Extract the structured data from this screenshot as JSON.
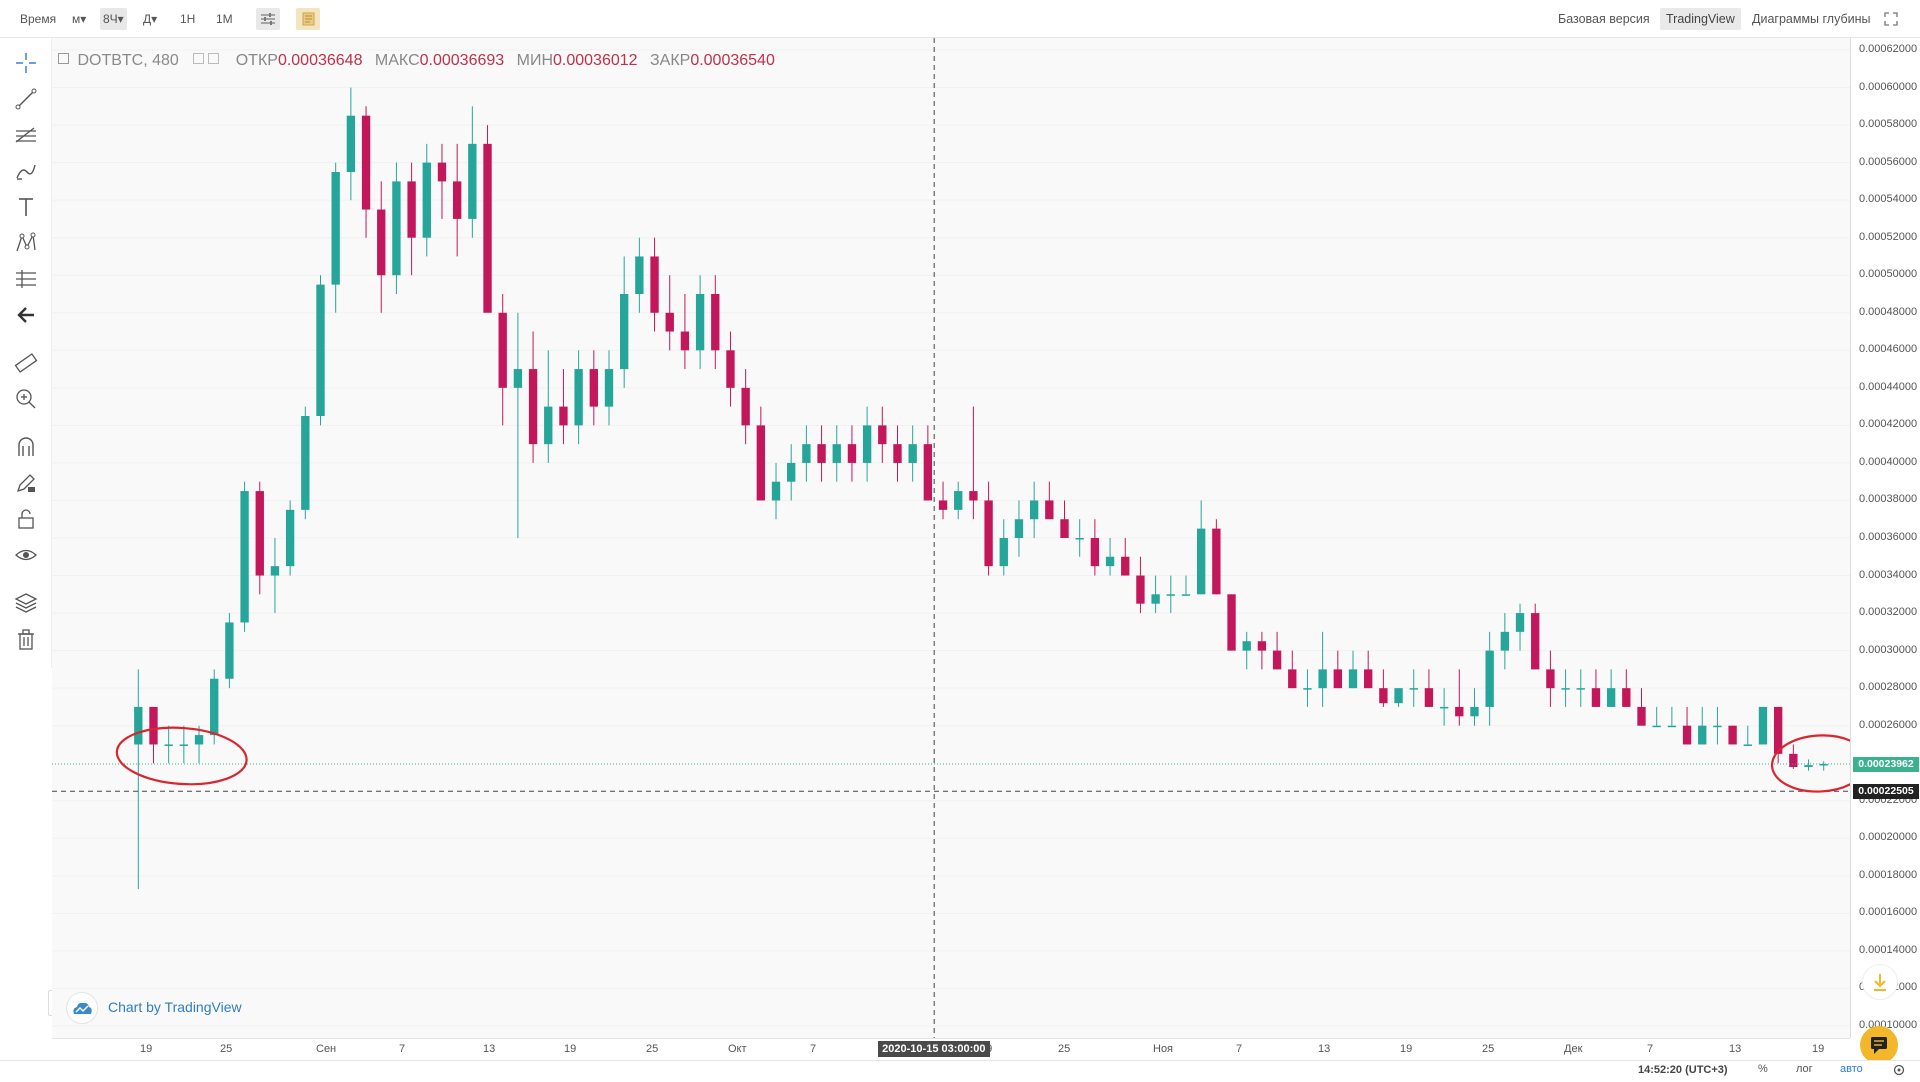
{
  "toolbar": {
    "time_label": "Время",
    "minutes_label": "м▾",
    "interval_selected": "8Ч▾",
    "days_label": "Д▾",
    "h1_label": "1Н",
    "m1_label": "1М",
    "indicators_icon": "sliders-icon",
    "template_icon": "note-icon",
    "views": [
      "Базовая версия",
      "TradingView",
      "Диаграммы глубины"
    ],
    "active_view": "TradingView",
    "fullscreen_icon": "fullscreen-icon"
  },
  "left_tools": [
    "crosshair-icon",
    "trendline-icon",
    "fib-icon",
    "brush-icon",
    "text-icon",
    "pattern-icon",
    "measure-lines-icon",
    "back-arrow-icon",
    "ruler-icon",
    "zoom-in-icon",
    "magnet-icon",
    "lock-pencil-icon",
    "unlock-icon",
    "eye-icon",
    "layers-icon",
    "trash-icon"
  ],
  "legend": {
    "symbol": "DOTBTC, 480",
    "open_label": "ОТКР",
    "open_value": "0.00036648",
    "high_label": "МАКС",
    "high_value": "0.00036693",
    "low_label": "МИН",
    "low_value": "0.00036012",
    "close_label": "ЗАКР",
    "close_value": "0.00036540"
  },
  "watermark": "Chart by TradingView",
  "price_axis": [
    "0.00062000",
    "0.00060000",
    "0.00058000",
    "0.00056000",
    "0.00054000",
    "0.00052000",
    "0.00050000",
    "0.00048000",
    "0.00046000",
    "0.00044000",
    "0.00042000",
    "0.00040000",
    "0.00038000",
    "0.00036000",
    "0.00034000",
    "0.00032000",
    "0.00030000",
    "0.00028000",
    "0.00026000",
    "0.00022000",
    "0.00020000",
    "0.00018000",
    "0.00016000",
    "0.00014000",
    "0.00012000",
    "0.00010000"
  ],
  "current_price": "0.00023962",
  "crosshair_price": "0.00022505",
  "time_axis": [
    "19",
    "25",
    "Сен",
    "7",
    "13",
    "19",
    "25",
    "Окт",
    "7",
    "19",
    "25",
    "Ноя",
    "7",
    "13",
    "19",
    "25",
    "Дек",
    "7",
    "13",
    "19"
  ],
  "crosshair_date": "2020-10-15 03:00:00",
  "bottom": {
    "clock": "14:52:20 (UTC+3)",
    "percent": "%",
    "log": "лог",
    "auto": "авто",
    "settings_icon": "gear-icon"
  },
  "colors": {
    "up": "#26a69a",
    "down": "#c2185b",
    "annotation": "#d7262e",
    "current_price": "#3bb28f",
    "accent": "#f2b72b"
  },
  "chart_data": {
    "type": "candlestick",
    "ylim": [
      0.0001,
      0.00062
    ],
    "x_range": [
      "2020-08-18",
      "2020-12-20"
    ],
    "series": [
      {
        "values": [
          [
            0.00025,
            0.00029,
            0.000173,
            0.00027
          ],
          [
            0.00027,
            0.00027,
            0.00024,
            0.00025
          ],
          [
            0.00025,
            0.00026,
            0.00024,
            0.00025
          ],
          [
            0.00025,
            0.00026,
            0.00024,
            0.00025
          ],
          [
            0.00025,
            0.00026,
            0.00024,
            0.000255
          ],
          [
            0.000255,
            0.00029,
            0.00025,
            0.000285
          ],
          [
            0.000285,
            0.00032,
            0.00028,
            0.000315
          ],
          [
            0.000315,
            0.00039,
            0.00031,
            0.000385
          ],
          [
            0.000385,
            0.00039,
            0.00033,
            0.00034
          ],
          [
            0.00034,
            0.00036,
            0.00032,
            0.000345
          ],
          [
            0.000345,
            0.00038,
            0.00034,
            0.000375
          ],
          [
            0.000375,
            0.00043,
            0.00037,
            0.000425
          ],
          [
            0.000425,
            0.0005,
            0.00042,
            0.000495
          ],
          [
            0.000495,
            0.00056,
            0.00048,
            0.000555
          ],
          [
            0.000555,
            0.0006,
            0.00054,
            0.000585
          ],
          [
            0.000585,
            0.00059,
            0.00052,
            0.000535
          ],
          [
            0.000535,
            0.00055,
            0.00048,
            0.0005
          ],
          [
            0.0005,
            0.00056,
            0.00049,
            0.00055
          ],
          [
            0.00055,
            0.00056,
            0.0005,
            0.00052
          ],
          [
            0.00052,
            0.00057,
            0.00051,
            0.00056
          ],
          [
            0.00056,
            0.00057,
            0.00053,
            0.00055
          ],
          [
            0.00055,
            0.00057,
            0.00051,
            0.00053
          ],
          [
            0.00053,
            0.00059,
            0.00052,
            0.00057
          ],
          [
            0.00057,
            0.00058,
            0.00049,
            0.00048
          ],
          [
            0.00048,
            0.00049,
            0.00042,
            0.00044
          ],
          [
            0.00044,
            0.00048,
            0.00036,
            0.00045
          ],
          [
            0.00045,
            0.00047,
            0.0004,
            0.00041
          ],
          [
            0.00041,
            0.00046,
            0.0004,
            0.00043
          ],
          [
            0.00043,
            0.00045,
            0.00041,
            0.00042
          ],
          [
            0.00042,
            0.00046,
            0.00041,
            0.00045
          ],
          [
            0.00045,
            0.00046,
            0.00042,
            0.00043
          ],
          [
            0.00043,
            0.00046,
            0.00042,
            0.00045
          ],
          [
            0.00045,
            0.00051,
            0.00044,
            0.00049
          ],
          [
            0.00049,
            0.00052,
            0.00048,
            0.00051
          ],
          [
            0.00051,
            0.00052,
            0.00047,
            0.00048
          ],
          [
            0.00048,
            0.0005,
            0.00046,
            0.00047
          ],
          [
            0.00047,
            0.00049,
            0.00045,
            0.00046
          ],
          [
            0.00046,
            0.0005,
            0.00045,
            0.00049
          ],
          [
            0.00049,
            0.0005,
            0.00045,
            0.00046
          ],
          [
            0.00046,
            0.00047,
            0.00043,
            0.00044
          ],
          [
            0.00044,
            0.00045,
            0.00041,
            0.00042
          ],
          [
            0.00042,
            0.00043,
            0.00038,
            0.00038
          ],
          [
            0.00038,
            0.0004,
            0.00037,
            0.00039
          ],
          [
            0.00039,
            0.00041,
            0.00038,
            0.0004
          ],
          [
            0.0004,
            0.00042,
            0.00039,
            0.00041
          ],
          [
            0.00041,
            0.00042,
            0.00039,
            0.0004
          ],
          [
            0.0004,
            0.00042,
            0.00039,
            0.00041
          ],
          [
            0.00041,
            0.00042,
            0.00039,
            0.0004
          ],
          [
            0.0004,
            0.00043,
            0.00039,
            0.00042
          ],
          [
            0.00042,
            0.00043,
            0.0004,
            0.00041
          ],
          [
            0.00041,
            0.00042,
            0.00039,
            0.0004
          ],
          [
            0.0004,
            0.00042,
            0.00039,
            0.00041
          ],
          [
            0.00041,
            0.00042,
            0.00038,
            0.00038
          ],
          [
            0.00038,
            0.00039,
            0.00037,
            0.000375
          ],
          [
            0.000375,
            0.00039,
            0.00037,
            0.000385
          ],
          [
            0.000385,
            0.00043,
            0.00037,
            0.00038
          ],
          [
            0.00038,
            0.00039,
            0.00034,
            0.000345
          ],
          [
            0.000345,
            0.00037,
            0.00034,
            0.00036
          ],
          [
            0.00036,
            0.00038,
            0.00035,
            0.00037
          ],
          [
            0.00037,
            0.00039,
            0.00036,
            0.00038
          ],
          [
            0.00038,
            0.00039,
            0.00037,
            0.00037
          ],
          [
            0.00037,
            0.00038,
            0.00036,
            0.00036
          ],
          [
            0.00036,
            0.00037,
            0.00035,
            0.00036
          ],
          [
            0.00036,
            0.00037,
            0.00034,
            0.000345
          ],
          [
            0.000345,
            0.00036,
            0.00034,
            0.00035
          ],
          [
            0.00035,
            0.00036,
            0.00034,
            0.00034
          ],
          [
            0.00034,
            0.00035,
            0.00032,
            0.000325
          ],
          [
            0.000325,
            0.00034,
            0.00032,
            0.00033
          ],
          [
            0.00033,
            0.00034,
            0.00032,
            0.00033
          ],
          [
            0.00033,
            0.00034,
            0.00033,
            0.00033
          ],
          [
            0.00033,
            0.00038,
            0.00033,
            0.000365
          ],
          [
            0.000365,
            0.00037,
            0.00033,
            0.00033
          ],
          [
            0.00033,
            0.00033,
            0.0003,
            0.0003
          ],
          [
            0.0003,
            0.00031,
            0.00029,
            0.000305
          ],
          [
            0.000305,
            0.00031,
            0.00029,
            0.0003
          ],
          [
            0.0003,
            0.00031,
            0.00029,
            0.00029
          ],
          [
            0.00029,
            0.0003,
            0.00028,
            0.00028
          ],
          [
            0.00028,
            0.00029,
            0.00027,
            0.00028
          ],
          [
            0.00028,
            0.00031,
            0.00027,
            0.00029
          ],
          [
            0.00029,
            0.0003,
            0.00028,
            0.00028
          ],
          [
            0.00028,
            0.0003,
            0.00028,
            0.00029
          ],
          [
            0.00029,
            0.0003,
            0.00028,
            0.00028
          ],
          [
            0.00028,
            0.00029,
            0.00027,
            0.000272
          ],
          [
            0.000272,
            0.00028,
            0.00027,
            0.00028
          ],
          [
            0.00028,
            0.00029,
            0.00027,
            0.00028
          ],
          [
            0.00028,
            0.00029,
            0.00027,
            0.00027
          ],
          [
            0.00027,
            0.00028,
            0.00026,
            0.00027
          ],
          [
            0.00027,
            0.00029,
            0.00026,
            0.000265
          ],
          [
            0.000265,
            0.00028,
            0.00026,
            0.00027
          ],
          [
            0.00027,
            0.00031,
            0.00026,
            0.0003
          ],
          [
            0.0003,
            0.00032,
            0.00029,
            0.00031
          ],
          [
            0.00031,
            0.000325,
            0.0003,
            0.00032
          ],
          [
            0.00032,
            0.000325,
            0.00029,
            0.00029
          ],
          [
            0.00029,
            0.0003,
            0.00027,
            0.00028
          ],
          [
            0.00028,
            0.00029,
            0.00027,
            0.00028
          ],
          [
            0.00028,
            0.00029,
            0.00027,
            0.00028
          ],
          [
            0.00028,
            0.00029,
            0.00027,
            0.00027
          ],
          [
            0.00027,
            0.00029,
            0.00027,
            0.00028
          ],
          [
            0.00028,
            0.00029,
            0.00027,
            0.00027
          ],
          [
            0.00027,
            0.00028,
            0.00026,
            0.00026
          ],
          [
            0.00026,
            0.00027,
            0.00026,
            0.00026
          ],
          [
            0.00026,
            0.00027,
            0.00026,
            0.00026
          ],
          [
            0.00026,
            0.00027,
            0.00025,
            0.00025
          ],
          [
            0.00025,
            0.00027,
            0.00025,
            0.00026
          ],
          [
            0.00026,
            0.00027,
            0.00025,
            0.00026
          ],
          [
            0.00026,
            0.00026,
            0.00025,
            0.00025
          ],
          [
            0.00025,
            0.00026,
            0.00025,
            0.00025
          ],
          [
            0.00025,
            0.00027,
            0.00025,
            0.00027
          ],
          [
            0.00027,
            0.00027,
            0.00024,
            0.000245
          ],
          [
            0.000245,
            0.00025,
            0.000237,
            0.000238
          ],
          [
            0.000238,
            0.000242,
            0.000236,
            0.000239
          ],
          [
            0.000239,
            0.000241,
            0.000236,
            0.0002396
          ]
        ]
      }
    ],
    "annotations": [
      {
        "shape": "ellipse",
        "label": "",
        "x": "2020-08-20",
        "y": 0.000246
      },
      {
        "shape": "ellipse",
        "label": "",
        "x": "2020-12-19",
        "y": 0.000242
      }
    ]
  }
}
